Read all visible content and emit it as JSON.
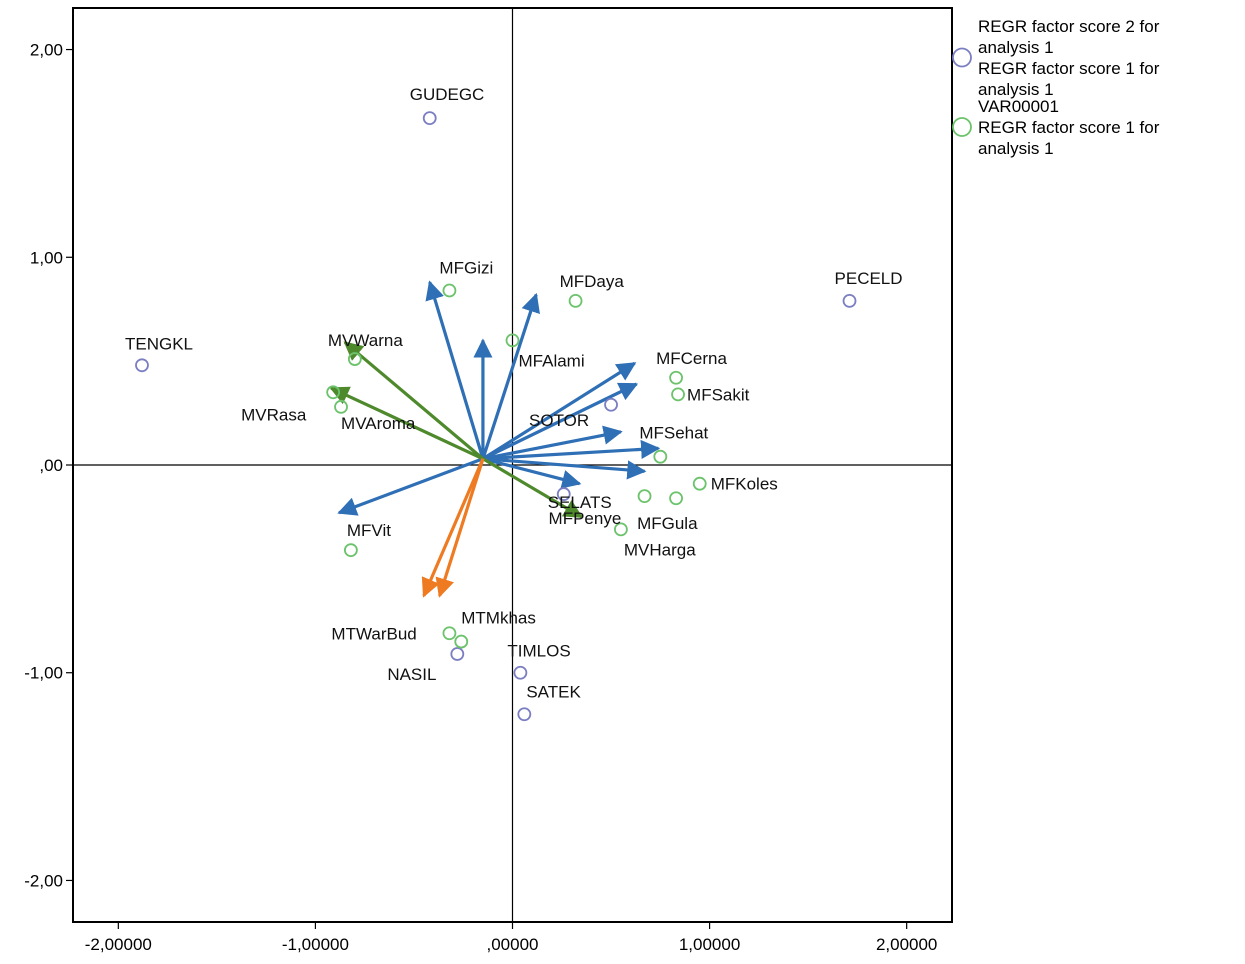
{
  "chart_data": {
    "type": "scatter",
    "title": "",
    "xlabel": "",
    "ylabel": "",
    "xlim": [
      -2.23,
      2.23
    ],
    "ylim": [
      -2.2,
      2.2
    ],
    "x_ticks": [
      -2,
      -1,
      0,
      1,
      2
    ],
    "x_tick_labels": [
      "-2,00000",
      "-1,00000",
      ",00000",
      "1,00000",
      "2,00000"
    ],
    "y_ticks": [
      2,
      1,
      0,
      -1,
      -2
    ],
    "y_tick_labels": [
      "2,00",
      "1,00",
      ",00",
      "-1,00",
      "-2,00"
    ],
    "reference_lines": {
      "x": 0,
      "y": 0
    },
    "grid": false,
    "legend_position": "right",
    "series_colors": {
      "objects": "#7b7fc2",
      "attributes": "#6cc36c"
    },
    "arrow_colors": {
      "blue": "#2f6fb5",
      "green": "#4e8a2c",
      "orange": "#ee7a22"
    },
    "series": [
      {
        "name": "REGR factor score  2 for analysis 1 / REGR factor score  1 for analysis 1",
        "role": "objects",
        "points": [
          {
            "label": "GUDEGC",
            "x": -0.42,
            "y": 1.67
          },
          {
            "label": "TENGKL",
            "x": -1.88,
            "y": 0.48
          },
          {
            "label": "PECELD",
            "x": 1.71,
            "y": 0.79
          },
          {
            "label": "SOTOR",
            "x": 0.5,
            "y": 0.29
          },
          {
            "label": "SELATS",
            "x": 0.26,
            "y": -0.14
          },
          {
            "label": "NASIL",
            "x": -0.28,
            "y": -0.91
          },
          {
            "label": "TIMLOS",
            "x": 0.04,
            "y": -1.0
          },
          {
            "label": "SATEK",
            "x": 0.06,
            "y": -1.2
          }
        ]
      },
      {
        "name": "VAR00001 / REGR factor score  1 for analysis 1",
        "role": "attributes",
        "points": [
          {
            "label": "MFGizi",
            "x": -0.32,
            "y": 0.84
          },
          {
            "label": "MFDaya",
            "x": 0.32,
            "y": 0.79
          },
          {
            "label": "MFAlami",
            "x": 0.0,
            "y": 0.6
          },
          {
            "label": "MVWarna",
            "x": -0.8,
            "y": 0.51
          },
          {
            "label": "MVRasa",
            "x": -0.91,
            "y": 0.35
          },
          {
            "label": "MVAroma",
            "x": -0.87,
            "y": 0.28
          },
          {
            "label": "MFCerna",
            "x": 0.83,
            "y": 0.42
          },
          {
            "label": "MFSakit",
            "x": 0.84,
            "y": 0.34
          },
          {
            "label": "MFSehat",
            "x": 0.75,
            "y": 0.04
          },
          {
            "label": "MFKoles",
            "x": 0.95,
            "y": -0.09
          },
          {
            "label": "MFPenye",
            "x": 0.67,
            "y": -0.15
          },
          {
            "label": "MFGula",
            "x": 0.83,
            "y": -0.16
          },
          {
            "label": "MVHarga",
            "x": 0.55,
            "y": -0.31
          },
          {
            "label": "MFVit",
            "x": -0.82,
            "y": -0.41
          },
          {
            "label": "MTWarBud",
            "x": -0.32,
            "y": -0.81
          },
          {
            "label": "MTMkhas",
            "x": -0.26,
            "y": -0.85
          }
        ]
      }
    ],
    "arrows": [
      {
        "color": "blue",
        "x": -0.42,
        "y": 0.88
      },
      {
        "color": "blue",
        "x": -0.15,
        "y": 0.6
      },
      {
        "color": "blue",
        "x": 0.12,
        "y": 0.82
      },
      {
        "color": "blue",
        "x": 0.62,
        "y": 0.49
      },
      {
        "color": "blue",
        "x": 0.63,
        "y": 0.39
      },
      {
        "color": "blue",
        "x": 0.55,
        "y": 0.16
      },
      {
        "color": "blue",
        "x": 0.74,
        "y": 0.08
      },
      {
        "color": "blue",
        "x": 0.67,
        "y": -0.03
      },
      {
        "color": "blue",
        "x": 0.34,
        "y": -0.09
      },
      {
        "color": "blue",
        "x": -0.88,
        "y": -0.23
      },
      {
        "color": "green",
        "x": -0.85,
        "y": 0.59
      },
      {
        "color": "green",
        "x": -0.92,
        "y": 0.37
      },
      {
        "color": "green",
        "x": 0.35,
        "y": -0.25
      },
      {
        "color": "orange",
        "x": -0.45,
        "y": -0.63
      },
      {
        "color": "orange",
        "x": -0.37,
        "y": -0.63
      }
    ],
    "arrow_origin": {
      "x": -0.15,
      "y": 0.03
    },
    "label_offsets": {
      "GUDEGC": [
        -20,
        -18
      ],
      "TENGKL": [
        -17,
        -16
      ],
      "PECELD": [
        -15,
        -17
      ],
      "SOTOR": [
        -82,
        21
      ],
      "SELATS": [
        -16,
        14
      ],
      "NASIL": [
        -70,
        26
      ],
      "TIMLOS": [
        -13,
        -16
      ],
      "SATEK": [
        2,
        -17
      ],
      "MFGizi": [
        -10,
        -17
      ],
      "MFDaya": [
        -16,
        -14
      ],
      "MFAlami": [
        6,
        26
      ],
      "MVWarna": [
        -27,
        -13
      ],
      "MVRasa": [
        -92,
        28
      ],
      "MVAroma": [
        0,
        22
      ],
      "MFCerna": [
        -20,
        -14
      ],
      "MFSakit": [
        9,
        6
      ],
      "MFSehat": [
        -21,
        -18
      ],
      "MFKoles": [
        11,
        6
      ],
      "MFPenye": [
        -96,
        28
      ],
      "MFGula": [
        -39,
        31
      ],
      "MVHarga": [
        3,
        26
      ],
      "MFVit": [
        -4,
        -14
      ],
      "MTWarBud": [
        -118,
        6
      ],
      "MTMkhas": [
        0,
        -18
      ]
    }
  },
  "legend": [
    {
      "marker": "objects",
      "lines": [
        "REGR factor score   2 for",
        "analysis 1",
        " REGR factor score   1 for",
        "analysis 1"
      ]
    },
    {
      "marker": "attributes",
      "lines": [
        "VAR00001",
        " REGR factor score   1 for",
        "analysis 1"
      ]
    }
  ]
}
